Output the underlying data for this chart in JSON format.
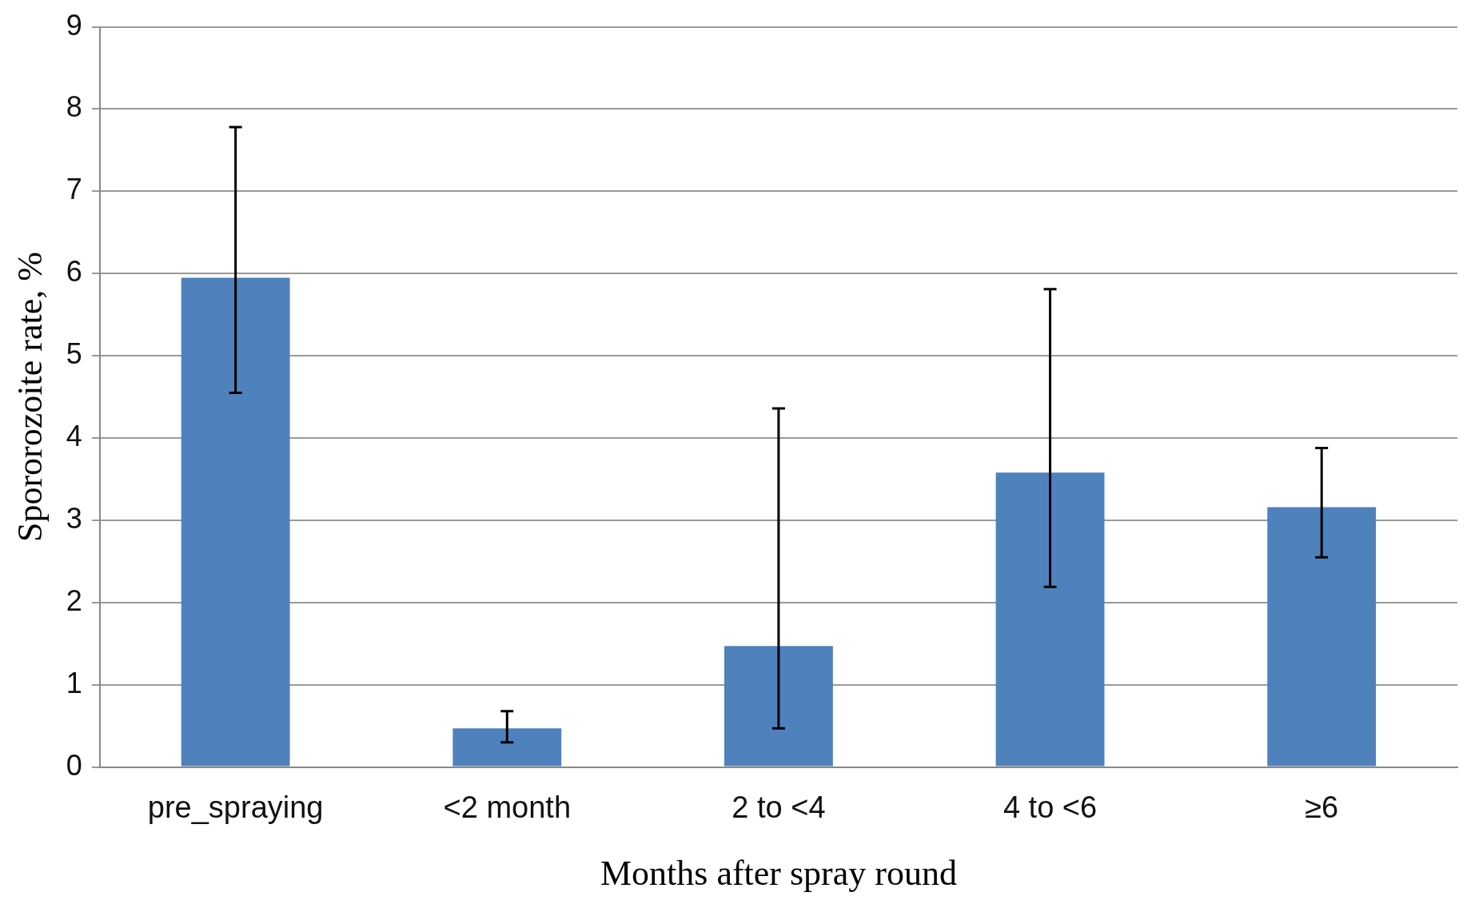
{
  "chart_data": {
    "type": "bar",
    "xlabel": "Months after spray round",
    "ylabel": "Spororozoite rate, %",
    "categories": [
      "pre_spraying",
      "<2 month",
      "2 to <4",
      "4 to <6",
      "≥6"
    ],
    "values": [
      5.95,
      0.47,
      1.47,
      3.58,
      3.16
    ],
    "errors": [
      [
        4.55,
        7.78
      ],
      [
        0.3,
        0.68
      ],
      [
        0.47,
        4.36
      ],
      [
        2.19,
        5.81
      ],
      [
        2.55,
        3.88
      ]
    ],
    "color": "#4f81bd",
    "ylim": [
      0,
      9
    ],
    "yticks": [
      0,
      1,
      2,
      3,
      4,
      5,
      6,
      7,
      8,
      9
    ],
    "grid": "y",
    "legend": false
  }
}
